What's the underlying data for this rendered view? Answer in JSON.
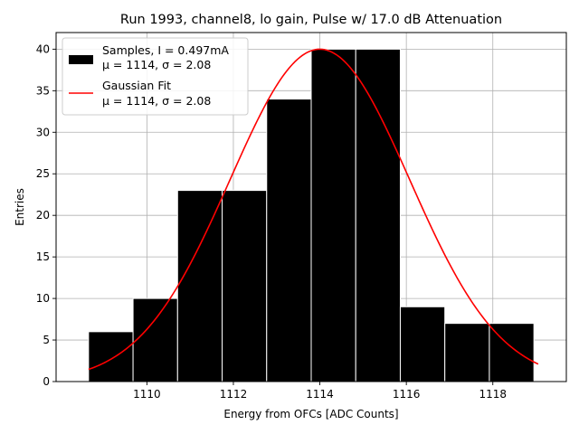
{
  "chart_data": {
    "type": "bar",
    "title": "Run 1993, channel8, lo gain, Pulse w/ 17.0 dB Attenuation",
    "xlabel": "Energy from OFCs [ADC Counts]",
    "ylabel": "Entries",
    "xlim": [
      1107.9,
      1119.7
    ],
    "ylim": [
      0,
      42
    ],
    "grid": true,
    "xticks": [
      1110,
      1112,
      1114,
      1116,
      1118
    ],
    "yticks": [
      0,
      5,
      10,
      15,
      20,
      25,
      30,
      35,
      40
    ],
    "histogram": {
      "name": "Samples, I = 0.497mA",
      "stats_label": "μ = 1114, σ = 2.08",
      "color": "#000000",
      "edge_color": "#ffffff",
      "bins": [
        {
          "start": 1108.65,
          "end": 1109.68,
          "count": 6
        },
        {
          "start": 1109.68,
          "end": 1110.71,
          "count": 10
        },
        {
          "start": 1110.71,
          "end": 1111.74,
          "count": 23
        },
        {
          "start": 1111.74,
          "end": 1112.77,
          "count": 23
        },
        {
          "start": 1112.77,
          "end": 1113.8,
          "count": 34
        },
        {
          "start": 1113.8,
          "end": 1114.83,
          "count": 40
        },
        {
          "start": 1114.83,
          "end": 1115.86,
          "count": 40
        },
        {
          "start": 1115.86,
          "end": 1116.89,
          "count": 9
        },
        {
          "start": 1116.89,
          "end": 1117.92,
          "count": 7
        },
        {
          "start": 1117.92,
          "end": 1118.95,
          "count": 7
        }
      ]
    },
    "fit": {
      "name": "Gaussian Fit",
      "stats_label": "μ = 1114, σ = 2.08",
      "color": "#ff0000",
      "amplitude": 40,
      "mean": 1114,
      "sigma": 2.08,
      "x_range": [
        1108.65,
        1119.05
      ]
    },
    "legend": {
      "placement": "top-left"
    }
  }
}
